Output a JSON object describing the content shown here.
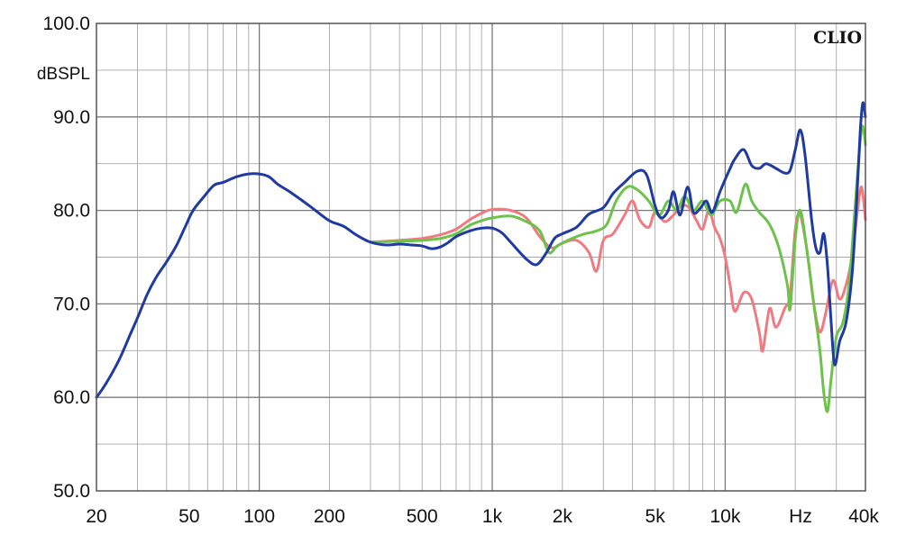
{
  "chart_data": {
    "type": "line",
    "brand": "CLIO",
    "ylabel": "dBSPL",
    "xunit": "Hz",
    "xscale": "log",
    "xlim": [
      20,
      40000
    ],
    "ylim": [
      50,
      100
    ],
    "grid": true,
    "y_ticks": [
      {
        "value": 100,
        "label": "100.0"
      },
      {
        "value": 90,
        "label": "90.0"
      },
      {
        "value": 80,
        "label": "80.0"
      },
      {
        "value": 70,
        "label": "70.0"
      },
      {
        "value": 60,
        "label": "60.0"
      },
      {
        "value": 50,
        "label": "50.0"
      }
    ],
    "x_ticks": [
      {
        "value": 20,
        "label": "20"
      },
      {
        "value": 50,
        "label": "50"
      },
      {
        "value": 100,
        "label": "100"
      },
      {
        "value": 200,
        "label": "200"
      },
      {
        "value": 500,
        "label": "500"
      },
      {
        "value": 1000,
        "label": "1k"
      },
      {
        "value": 2000,
        "label": "2k"
      },
      {
        "value": 5000,
        "label": "5k"
      },
      {
        "value": 10000,
        "label": "10k"
      },
      {
        "value": 40000,
        "label": "40k"
      }
    ],
    "series": [
      {
        "color": "#f07a80",
        "points": [
          [
            300,
            76.6
          ],
          [
            400,
            76.8
          ],
          [
            500,
            77.0
          ],
          [
            600,
            77.4
          ],
          [
            700,
            78.0
          ],
          [
            800,
            79.0
          ],
          [
            900,
            79.7
          ],
          [
            1000,
            80.1
          ],
          [
            1200,
            80.0
          ],
          [
            1400,
            79.2
          ],
          [
            1600,
            77.2
          ],
          [
            1800,
            76.0
          ],
          [
            2000,
            76.5
          ],
          [
            2300,
            76.8
          ],
          [
            2600,
            75.5
          ],
          [
            2800,
            73.5
          ],
          [
            3000,
            76.8
          ],
          [
            3300,
            77.5
          ],
          [
            3700,
            79.5
          ],
          [
            4000,
            81.0
          ],
          [
            4300,
            79.0
          ],
          [
            4700,
            78.2
          ],
          [
            5000,
            79.8
          ],
          [
            5500,
            78.8
          ],
          [
            6000,
            79.5
          ],
          [
            6500,
            80.5
          ],
          [
            7000,
            80.3
          ],
          [
            7500,
            79.0
          ],
          [
            8000,
            78.0
          ],
          [
            8500,
            80.0
          ],
          [
            9000,
            78.2
          ],
          [
            9500,
            77.0
          ],
          [
            10000,
            75.0
          ],
          [
            10500,
            72.0
          ],
          [
            11000,
            69.2
          ],
          [
            12000,
            71.2
          ],
          [
            13000,
            70.5
          ],
          [
            14000,
            67.0
          ],
          [
            14500,
            65.0
          ],
          [
            15500,
            69.5
          ],
          [
            16500,
            67.5
          ],
          [
            18000,
            69.5
          ],
          [
            19000,
            71.0
          ],
          [
            20000,
            78.0
          ],
          [
            21000,
            79.5
          ],
          [
            22500,
            75.5
          ],
          [
            24000,
            70.0
          ],
          [
            25500,
            67.0
          ],
          [
            27000,
            69.0
          ],
          [
            29000,
            72.5
          ],
          [
            31000,
            70.5
          ],
          [
            33000,
            72.0
          ],
          [
            35000,
            75.0
          ],
          [
            37000,
            80.0
          ],
          [
            38500,
            82.5
          ],
          [
            40000,
            79.0
          ]
        ]
      },
      {
        "color": "#6dc24b",
        "points": [
          [
            300,
            76.6
          ],
          [
            400,
            76.7
          ],
          [
            500,
            76.8
          ],
          [
            600,
            77.0
          ],
          [
            700,
            77.5
          ],
          [
            800,
            78.4
          ],
          [
            900,
            78.9
          ],
          [
            1000,
            79.2
          ],
          [
            1200,
            79.4
          ],
          [
            1400,
            78.8
          ],
          [
            1600,
            77.8
          ],
          [
            1750,
            75.5
          ],
          [
            1900,
            76.2
          ],
          [
            2200,
            77.0
          ],
          [
            2500,
            77.5
          ],
          [
            2800,
            77.8
          ],
          [
            3100,
            78.5
          ],
          [
            3400,
            81.0
          ],
          [
            3800,
            82.5
          ],
          [
            4200,
            82.2
          ],
          [
            4700,
            81.0
          ],
          [
            5200,
            79.5
          ],
          [
            5700,
            81.0
          ],
          [
            6200,
            80.0
          ],
          [
            6700,
            81.5
          ],
          [
            7300,
            80.0
          ],
          [
            8000,
            81.0
          ],
          [
            8700,
            79.5
          ],
          [
            9500,
            81.0
          ],
          [
            10500,
            81.0
          ],
          [
            11200,
            79.8
          ],
          [
            12200,
            82.8
          ],
          [
            13000,
            81.0
          ],
          [
            14000,
            79.8
          ],
          [
            15500,
            78.5
          ],
          [
            17000,
            76.0
          ],
          [
            18500,
            72.0
          ],
          [
            19000,
            69.5
          ],
          [
            20000,
            77.0
          ],
          [
            21000,
            80.0
          ],
          [
            22500,
            75.5
          ],
          [
            24000,
            70.0
          ],
          [
            25500,
            65.0
          ],
          [
            26500,
            60.5
          ],
          [
            27500,
            58.5
          ],
          [
            28500,
            62.0
          ],
          [
            30000,
            66.5
          ],
          [
            32000,
            68.0
          ],
          [
            34000,
            72.0
          ],
          [
            36000,
            80.0
          ],
          [
            38000,
            87.5
          ],
          [
            39000,
            89.0
          ],
          [
            40000,
            87.0
          ]
        ]
      },
      {
        "color": "#1f3aa0",
        "points": [
          [
            20,
            60.0
          ],
          [
            22,
            61.5
          ],
          [
            25,
            64.0
          ],
          [
            28,
            66.8
          ],
          [
            30,
            68.5
          ],
          [
            33,
            71.0
          ],
          [
            36,
            72.8
          ],
          [
            40,
            74.5
          ],
          [
            44,
            76.2
          ],
          [
            48,
            78.2
          ],
          [
            52,
            80.0
          ],
          [
            58,
            81.5
          ],
          [
            64,
            82.7
          ],
          [
            70,
            83.0
          ],
          [
            80,
            83.6
          ],
          [
            90,
            83.9
          ],
          [
            100,
            83.9
          ],
          [
            110,
            83.6
          ],
          [
            120,
            82.8
          ],
          [
            135,
            82.0
          ],
          [
            150,
            81.2
          ],
          [
            170,
            80.2
          ],
          [
            200,
            78.9
          ],
          [
            230,
            78.3
          ],
          [
            260,
            77.4
          ],
          [
            300,
            76.6
          ],
          [
            350,
            76.3
          ],
          [
            400,
            76.4
          ],
          [
            450,
            76.3
          ],
          [
            500,
            76.2
          ],
          [
            550,
            75.9
          ],
          [
            600,
            76.1
          ],
          [
            650,
            76.6
          ],
          [
            700,
            77.2
          ],
          [
            800,
            77.8
          ],
          [
            900,
            78.1
          ],
          [
            1000,
            78.1
          ],
          [
            1100,
            77.6
          ],
          [
            1200,
            76.6
          ],
          [
            1400,
            74.8
          ],
          [
            1550,
            74.2
          ],
          [
            1700,
            75.4
          ],
          [
            1850,
            77.0
          ],
          [
            2000,
            77.5
          ],
          [
            2300,
            78.2
          ],
          [
            2600,
            79.6
          ],
          [
            3000,
            80.3
          ],
          [
            3300,
            81.8
          ],
          [
            3700,
            83.0
          ],
          [
            4200,
            84.2
          ],
          [
            4600,
            83.8
          ],
          [
            5000,
            80.5
          ],
          [
            5300,
            79.2
          ],
          [
            5700,
            80.0
          ],
          [
            6000,
            82.0
          ],
          [
            6400,
            79.5
          ],
          [
            6900,
            82.5
          ],
          [
            7300,
            79.8
          ],
          [
            7800,
            80.2
          ],
          [
            8300,
            81.0
          ],
          [
            8800,
            79.8
          ],
          [
            9500,
            82.0
          ],
          [
            10500,
            84.5
          ],
          [
            11000,
            85.5
          ],
          [
            12000,
            86.5
          ],
          [
            13000,
            84.8
          ],
          [
            14000,
            84.5
          ],
          [
            15000,
            85.0
          ],
          [
            16500,
            84.5
          ],
          [
            18000,
            84.0
          ],
          [
            19000,
            84.3
          ],
          [
            20000,
            86.5
          ],
          [
            21000,
            88.6
          ],
          [
            22000,
            86.0
          ],
          [
            23500,
            79.0
          ],
          [
            24500,
            76.0
          ],
          [
            25500,
            75.5
          ],
          [
            26500,
            77.5
          ],
          [
            27500,
            74.0
          ],
          [
            28500,
            68.0
          ],
          [
            29500,
            63.5
          ],
          [
            31000,
            66.0
          ],
          [
            33000,
            68.0
          ],
          [
            35000,
            73.0
          ],
          [
            36500,
            80.0
          ],
          [
            38000,
            88.5
          ],
          [
            39000,
            91.5
          ],
          [
            40000,
            90.0
          ]
        ]
      }
    ]
  }
}
